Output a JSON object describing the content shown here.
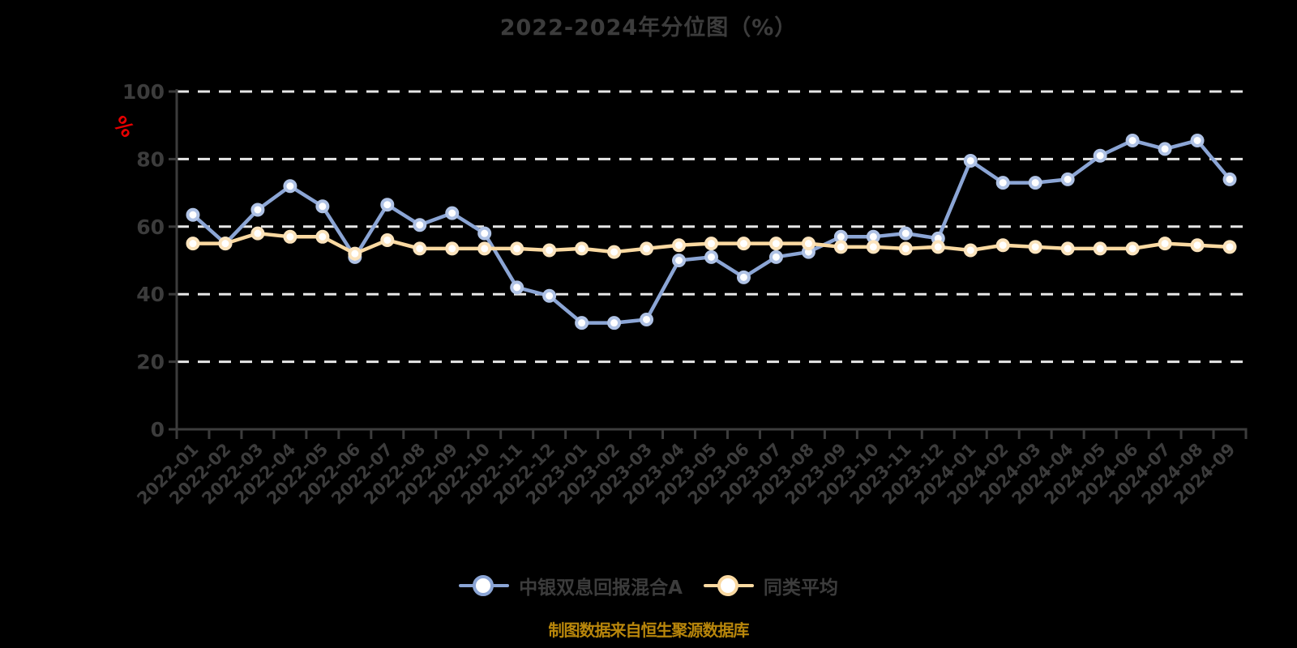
{
  "title": "2022-2024年分位图（%）",
  "footer": "制图数据来自恒生聚源数据库",
  "chart_data": {
    "type": "line",
    "title": "2022-2024年分位图（%）",
    "xlabel": "",
    "ylabel": "%",
    "ylim": [
      0,
      100
    ],
    "y_ticks": [
      0,
      20,
      40,
      60,
      80,
      100
    ],
    "grid": true,
    "grid_style": "white-dashed-horizontal",
    "legend_position": "bottom",
    "categories": [
      "2022-01",
      "2022-02",
      "2022-03",
      "2022-04",
      "2022-05",
      "2022-06",
      "2022-07",
      "2022-08",
      "2022-09",
      "2022-10",
      "2022-11",
      "2022-12",
      "2023-01",
      "2023-02",
      "2023-03",
      "2023-04",
      "2023-05",
      "2023-06",
      "2023-07",
      "2023-08",
      "2023-09",
      "2023-10",
      "2023-11",
      "2023-12",
      "2024-01",
      "2024-02",
      "2024-03",
      "2024-04",
      "2024-05",
      "2024-06",
      "2024-07",
      "2024-08",
      "2024-09"
    ],
    "series": [
      {
        "name": "中银双息回报混合A",
        "color": "#8BA5D5",
        "marker_border": "#AFC2E5",
        "values": [
          63.5,
          55,
          65,
          72,
          66,
          51,
          66.5,
          60.5,
          64,
          58,
          42,
          39.5,
          31.5,
          31.5,
          32.5,
          50,
          51,
          45,
          51,
          52.5,
          57,
          57,
          58,
          56.5,
          79.5,
          73,
          73,
          74,
          81,
          85.5,
          83,
          85.5,
          74
        ]
      },
      {
        "name": "同类平均",
        "color": "#FAD9A1",
        "marker_border": "#FBE3BC",
        "values": [
          55,
          55,
          58,
          57,
          57,
          52,
          56,
          53.5,
          53.5,
          53.5,
          53.5,
          53,
          53.5,
          52.5,
          53.5,
          54.5,
          55,
          55,
          55,
          55,
          54,
          54,
          53.5,
          54,
          53,
          54.5,
          54,
          53.5,
          53.5,
          53.5,
          55,
          54.5,
          54
        ]
      }
    ],
    "colors": {
      "background": "#000000",
      "grid": "#E6E6E6",
      "axis": "#3C3C3C",
      "tick_label": "#3C3C3C",
      "title": "#3C3C3C",
      "unit": "#E60000",
      "footer": "#B8860B"
    }
  }
}
